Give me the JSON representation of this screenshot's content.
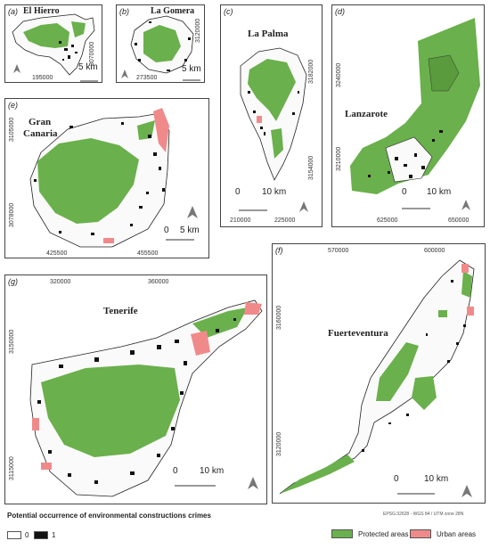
{
  "colors": {
    "protected": "#6ab04c",
    "urban": "#f08a8a",
    "crime": "#111111",
    "border": "#444444"
  },
  "panels": {
    "a": {
      "label": "(a)",
      "name": "El Hierro",
      "x_coord": "195000",
      "y_coord": "3070000",
      "scale": "5 km"
    },
    "b": {
      "label": "(b)",
      "name": "La Gomera",
      "x_coord": "273500",
      "y_coord": "3120000",
      "scale": "5 km"
    },
    "c": {
      "label": "(c)",
      "name": "La Palma",
      "y_coord_1": "3182000",
      "y_coord_2": "3154000",
      "x_coord_1": "210000",
      "x_coord_2": "225000",
      "scale_0": "0",
      "scale_1": "10 km"
    },
    "d": {
      "label": "(d)",
      "name": "Lanzarote",
      "y_coord_1": "3240000",
      "y_coord_2": "3210000",
      "x_coord_1": "625000",
      "x_coord_2": "650000",
      "scale_0": "0",
      "scale_1": "10 km"
    },
    "e": {
      "label": "(e)",
      "name_1": "Gran",
      "name_2": "Canaria",
      "y_coord_1": "3105000",
      "y_coord_2": "3078000",
      "x_coord_1": "425500",
      "x_coord_2": "455500",
      "scale_0": "0",
      "scale_1": "5 km"
    },
    "f": {
      "label": "(f)",
      "name": "Fuerteventura",
      "x_coord_1": "570000",
      "x_coord_2": "600000",
      "y_coord_1": "3160000",
      "y_coord_2": "3120000",
      "scale_0": "0",
      "scale_1": "10 km"
    },
    "g": {
      "label": "(g)",
      "name": "Tenerife",
      "x_coord_1": "320000",
      "x_coord_2": "360000",
      "y_coord_1": "3150000",
      "y_coord_2": "3115000",
      "scale_0": "0",
      "scale_1": "10 km"
    }
  },
  "legend": {
    "title": "Potential occurrence of environmental constructions crimes",
    "item_0": "0",
    "item_1": "1",
    "protected": "Protected areas",
    "urban": "Urban areas",
    "epsg": "EPSG:32628 - WGS 84 / UTM zone 28N"
  }
}
